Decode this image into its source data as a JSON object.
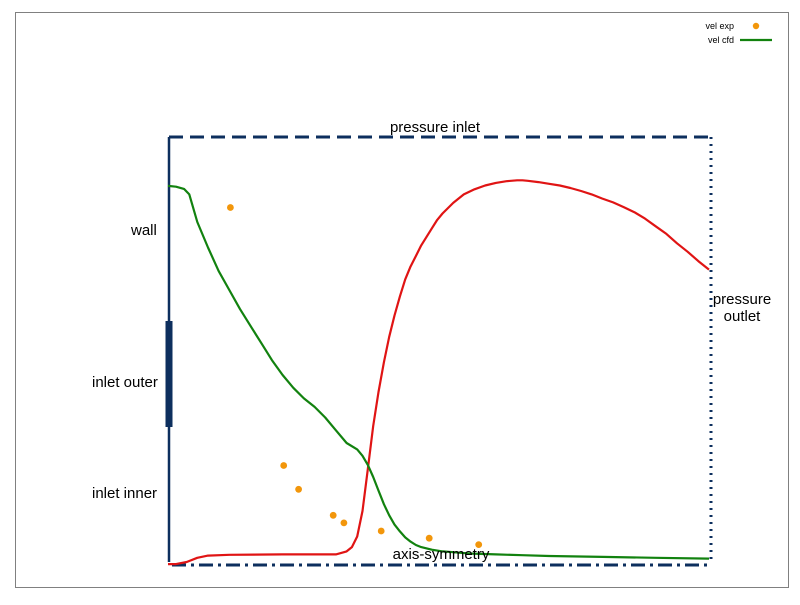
{
  "colors": {
    "boundary": "#0d2f5e",
    "experiment": "#f2960b",
    "cfd": "#12820f",
    "second_curve": "#e01414"
  },
  "chart_data": {
    "type": "scatter",
    "xlim": [
      0,
      100
    ],
    "ylim": [
      0,
      100
    ],
    "legend": {
      "placement": "top-right",
      "entries": [
        {
          "label": "vel exp",
          "marker": "point",
          "color": "#f2960b"
        },
        {
          "label": "vel cfd",
          "marker": "line",
          "color": "#12820f"
        }
      ]
    },
    "boundary_labels": {
      "top": "pressure inlet",
      "right_line1": "pressure",
      "right_line2": "outlet",
      "wall": "wall",
      "inlet_outer": "inlet outer",
      "inlet_inner": "inlet inner",
      "axis": "axis-symmetry"
    },
    "series": [
      {
        "label": "vel exp",
        "kind": "points",
        "color": "#f2960b",
        "x": [
          10.2,
          20.2,
          23.0,
          29.5,
          31.5,
          38.5,
          47.5,
          56.8
        ],
        "y": [
          83.4,
          22.7,
          17.1,
          11.0,
          9.2,
          7.3,
          5.6,
          4.1
        ]
      },
      {
        "label": "vel cfd",
        "kind": "line",
        "color": "#12820f",
        "x": [
          -1.5,
          0,
          1.5,
          2.5,
          4,
          6,
          8,
          10,
          12,
          14,
          16,
          18,
          20,
          22,
          24,
          26,
          28,
          30,
          32,
          34,
          35,
          36,
          37,
          38,
          39,
          40,
          41,
          42,
          43,
          44,
          45,
          46,
          48,
          50,
          52,
          55,
          60,
          65,
          70,
          80,
          90,
          100
        ],
        "y": [
          88.5,
          88.3,
          87.8,
          86.5,
          80.0,
          74.0,
          68.5,
          64.0,
          59.5,
          55.5,
          51.5,
          47.5,
          44.0,
          41.0,
          38.5,
          36.5,
          34.0,
          31.0,
          28.0,
          26.5,
          25.0,
          22.8,
          20.0,
          16.8,
          13.6,
          11.0,
          8.8,
          7.2,
          5.8,
          4.8,
          4.0,
          3.5,
          2.9,
          2.5,
          2.3,
          2.0,
          1.8,
          1.6,
          1.4,
          1.2,
          1.0,
          0.8
        ]
      },
      {
        "label": "",
        "kind": "line",
        "color": "#e01414",
        "x": [
          -1.5,
          0,
          2,
          4,
          6,
          10,
          20,
          30,
          32,
          33,
          34,
          35,
          36,
          37,
          38,
          39,
          40,
          41,
          42,
          43,
          44,
          45,
          46,
          47,
          48,
          49,
          50,
          52,
          54,
          56,
          58,
          60,
          62,
          64,
          65,
          66,
          68,
          70,
          72,
          74,
          76,
          78,
          80,
          82,
          84,
          86,
          88,
          90,
          92,
          94,
          96,
          98,
          100
        ],
        "y": [
          -0.5,
          -0.5,
          0.0,
          1.0,
          1.5,
          1.7,
          1.8,
          1.8,
          2.5,
          3.5,
          6.0,
          12.0,
          22.0,
          32.0,
          40.0,
          47.0,
          53.0,
          58.0,
          62.5,
          66.5,
          69.5,
          72.0,
          74.5,
          76.5,
          78.5,
          80.5,
          82.0,
          84.5,
          86.5,
          87.7,
          88.6,
          89.2,
          89.6,
          89.8,
          89.8,
          89.7,
          89.4,
          89.0,
          88.6,
          88.0,
          87.3,
          86.5,
          85.5,
          84.6,
          83.5,
          82.3,
          80.8,
          79.0,
          77.2,
          75.0,
          73.0,
          70.8,
          68.8
        ]
      }
    ]
  }
}
